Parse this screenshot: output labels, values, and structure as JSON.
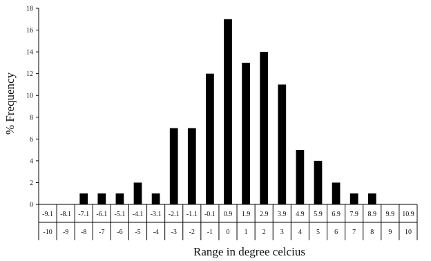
{
  "chart_data": {
    "type": "bar",
    "ylabel": "% Frequency",
    "xlabel": "Range in degree celcius",
    "ylim": [
      0,
      18
    ],
    "yticks": [
      0,
      2,
      4,
      6,
      8,
      10,
      12,
      14,
      16,
      18
    ],
    "upper_bounds": [
      "-9.1",
      "-8.1",
      "-7.1",
      "-6.1",
      "-5.1",
      "-4.1",
      "-3.1",
      "-2.1",
      "-1.1",
      "-0.1",
      "0.9",
      "1.9",
      "2.9",
      "3.9",
      "4.9",
      "5.9",
      "6.9",
      "7.9",
      "8.9",
      "9.9",
      "10.9"
    ],
    "lower_bounds": [
      "-10",
      "-9",
      "-8",
      "-7",
      "-6",
      "-5",
      "-4",
      "-3",
      "-2",
      "-1",
      "0",
      "1",
      "2",
      "3",
      "4",
      "5",
      "6",
      "7",
      "8",
      "9",
      "10"
    ],
    "values": [
      0,
      0,
      1,
      1,
      1,
      2,
      1,
      7,
      7,
      12,
      17,
      13,
      14,
      11,
      5,
      4,
      2,
      1,
      1,
      0,
      0
    ],
    "grid": false,
    "legend": "none"
  }
}
